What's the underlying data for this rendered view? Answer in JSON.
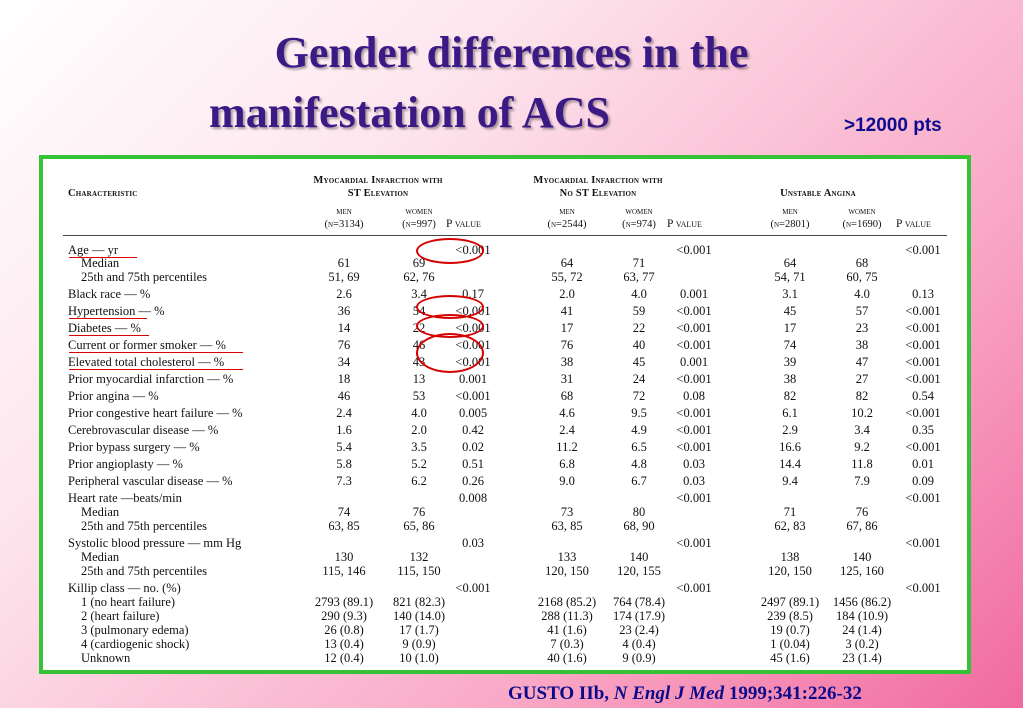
{
  "title": {
    "line1": "Gender differences in the",
    "line2": "manifestation of ACS"
  },
  "subtitle_pts": ">12000 pts",
  "table": {
    "characteristic_header": "Characteristic",
    "groups": [
      {
        "line1": "Myocardial Infarction with",
        "line2": "ST Elevation"
      },
      {
        "line1": "Myocardial Infarction with",
        "line2": "No ST Elevation"
      },
      {
        "line1": "Unstable Angina",
        "line2": ""
      }
    ],
    "subheaders": [
      {
        "sex": "men",
        "n": "(n=3134)"
      },
      {
        "sex": "women",
        "n": "(n=997)"
      },
      {
        "sex": "men",
        "n": "(n=2544)"
      },
      {
        "sex": "women",
        "n": "(n=974)"
      },
      {
        "sex": "men",
        "n": "(n=2801)"
      },
      {
        "sex": "women",
        "n": "(n=1690)"
      }
    ],
    "pvalue_label": "P value",
    "rows": [
      {
        "label": "Age — yr",
        "indent": false,
        "v": [
          "",
          "",
          "<0.001",
          "",
          "",
          "<0.001",
          "",
          "",
          "<0.001"
        ]
      },
      {
        "label": "Median",
        "indent": true,
        "v": [
          "61",
          "69",
          "",
          "64",
          "71",
          "",
          "64",
          "68",
          ""
        ]
      },
      {
        "label": "25th and 75th percentiles",
        "indent": true,
        "v": [
          "51, 69",
          "62, 76",
          "",
          "55, 72",
          "63, 77",
          "",
          "54, 71",
          "60, 75",
          ""
        ]
      },
      {
        "label": "Black race — %",
        "indent": false,
        "v": [
          "2.6",
          "3.4",
          "0.17",
          "2.0",
          "4.0",
          "0.001",
          "3.1",
          "4.0",
          "0.13"
        ]
      },
      {
        "label": "Hypertension — %",
        "indent": false,
        "v": [
          "36",
          "54",
          "<0.001",
          "41",
          "59",
          "<0.001",
          "45",
          "57",
          "<0.001"
        ]
      },
      {
        "label": "Diabetes — %",
        "indent": false,
        "v": [
          "14",
          "22",
          "<0.001",
          "17",
          "22",
          "<0.001",
          "17",
          "23",
          "<0.001"
        ]
      },
      {
        "label": "Current or former smoker — %",
        "indent": false,
        "v": [
          "76",
          "46",
          "<0.001",
          "76",
          "40",
          "<0.001",
          "74",
          "38",
          "<0.001"
        ]
      },
      {
        "label": "Elevated total cholesterol — %",
        "indent": false,
        "v": [
          "34",
          "43",
          "<0.001",
          "38",
          "45",
          "0.001",
          "39",
          "47",
          "<0.001"
        ]
      },
      {
        "label": "Prior myocardial infarction — %",
        "indent": false,
        "v": [
          "18",
          "13",
          "0.001",
          "31",
          "24",
          "<0.001",
          "38",
          "27",
          "<0.001"
        ]
      },
      {
        "label": "Prior angina — %",
        "indent": false,
        "v": [
          "46",
          "53",
          "<0.001",
          "68",
          "72",
          "0.08",
          "82",
          "82",
          "0.54"
        ]
      },
      {
        "label": "Prior congestive heart failure — %",
        "indent": false,
        "v": [
          "2.4",
          "4.0",
          "0.005",
          "4.6",
          "9.5",
          "<0.001",
          "6.1",
          "10.2",
          "<0.001"
        ]
      },
      {
        "label": "Cerebrovascular disease — %",
        "indent": false,
        "v": [
          "1.6",
          "2.0",
          "0.42",
          "2.4",
          "4.9",
          "<0.001",
          "2.9",
          "3.4",
          "0.35"
        ]
      },
      {
        "label": "Prior bypass surgery — %",
        "indent": false,
        "v": [
          "5.4",
          "3.5",
          "0.02",
          "11.2",
          "6.5",
          "<0.001",
          "16.6",
          "9.2",
          "<0.001"
        ]
      },
      {
        "label": "Prior angioplasty — %",
        "indent": false,
        "v": [
          "5.8",
          "5.2",
          "0.51",
          "6.8",
          "4.8",
          "0.03",
          "14.4",
          "11.8",
          "0.01"
        ]
      },
      {
        "label": "Peripheral vascular disease — %",
        "indent": false,
        "v": [
          "7.3",
          "6.2",
          "0.26",
          "9.0",
          "6.7",
          "0.03",
          "9.4",
          "7.9",
          "0.09"
        ]
      },
      {
        "label": "Heart rate —beats/min",
        "indent": false,
        "v": [
          "",
          "",
          "0.008",
          "",
          "",
          "<0.001",
          "",
          "",
          "<0.001"
        ]
      },
      {
        "label": "Median",
        "indent": true,
        "v": [
          "74",
          "76",
          "",
          "73",
          "80",
          "",
          "71",
          "76",
          ""
        ]
      },
      {
        "label": "25th and 75th percentiles",
        "indent": true,
        "v": [
          "63, 85",
          "65, 86",
          "",
          "63, 85",
          "68, 90",
          "",
          "62, 83",
          "67, 86",
          ""
        ]
      },
      {
        "label": "Systolic blood pressure — mm Hg",
        "indent": false,
        "v": [
          "",
          "",
          "0.03",
          "",
          "",
          "<0.001",
          "",
          "",
          "<0.001"
        ]
      },
      {
        "label": "Median",
        "indent": true,
        "v": [
          "130",
          "132",
          "",
          "133",
          "140",
          "",
          "138",
          "140",
          ""
        ]
      },
      {
        "label": "25th and 75th percentiles",
        "indent": true,
        "v": [
          "115, 146",
          "115, 150",
          "",
          "120, 150",
          "120, 155",
          "",
          "120, 150",
          "125, 160",
          ""
        ]
      },
      {
        "label": "Killip class — no. (%)",
        "indent": false,
        "v": [
          "",
          "",
          "<0.001",
          "",
          "",
          "<0.001",
          "",
          "",
          "<0.001"
        ]
      },
      {
        "label": "1 (no heart failure)",
        "indent": true,
        "v": [
          "2793 (89.1)",
          "821 (82.3)",
          "",
          "2168 (85.2)",
          "764 (78.4)",
          "",
          "2497 (89.1)",
          "1456 (86.2)",
          ""
        ]
      },
      {
        "label": "2 (heart failure)",
        "indent": true,
        "v": [
          "290 (9.3)",
          "140 (14.0)",
          "",
          "288 (11.3)",
          "174 (17.9)",
          "",
          "239 (8.5)",
          "184 (10.9)",
          ""
        ]
      },
      {
        "label": "3 (pulmonary edema)",
        "indent": true,
        "v": [
          "26 (0.8)",
          "17 (1.7)",
          "",
          "41 (1.6)",
          "23 (2.4)",
          "",
          "19 (0.7)",
          "24 (1.4)",
          ""
        ]
      },
      {
        "label": "4 (cardiogenic shock)",
        "indent": true,
        "v": [
          "13 (0.4)",
          "9 (0.9)",
          "",
          "7 (0.3)",
          "4 (0.4)",
          "",
          "1 (0.04)",
          "3 (0.2)",
          ""
        ]
      },
      {
        "label": "Unknown",
        "indent": true,
        "v": [
          "12 (0.4)",
          "10 (1.0)",
          "",
          "40 (1.6)",
          "9 (0.9)",
          "",
          "45 (1.6)",
          "23 (1.4)",
          ""
        ]
      }
    ]
  },
  "citation": {
    "prefix": "GUSTO IIb, ",
    "journal": "N Engl J Med",
    "ref": " 1999;341:226-32"
  },
  "colors": {
    "title": "#3b1a86",
    "pts": "#0c0c8f",
    "frame": "#35c235",
    "annotation": "#d40000",
    "citation": "#0a0a8a"
  }
}
